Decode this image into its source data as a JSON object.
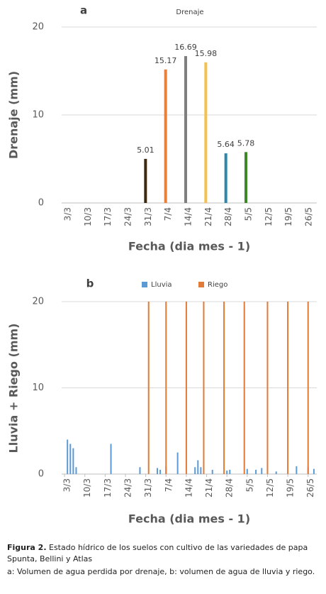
{
  "chart_data": [
    {
      "type": "bar",
      "panel": "a",
      "title": "Drenaje",
      "y_label": "Drenaje (mm)",
      "x_label": "Fecha (dia mes - 1)",
      "categories": [
        "3/3",
        "10/3",
        "17/3",
        "24/3",
        "31/3",
        "7/4",
        "14/4",
        "21/4",
        "28/4",
        "5/5",
        "12/5",
        "19/5",
        "26/5"
      ],
      "values": [
        null,
        null,
        null,
        null,
        5.01,
        15.17,
        16.69,
        15.98,
        5.64,
        5.78,
        null,
        null,
        null
      ],
      "colors": [
        null,
        null,
        null,
        null,
        "#3b2a10",
        "#e8803a",
        "#7f7f7f",
        "#f2c14e",
        "#2e86ab",
        "#3b8a2a",
        null,
        null,
        null
      ],
      "ylim": [
        0,
        20
      ],
      "yticks": [
        0,
        10,
        20
      ],
      "grid": true
    },
    {
      "type": "bar",
      "panel": "b",
      "y_label": "Lluvia + Riego (mm)",
      "x_label": "Fecha (dia mes - 1)",
      "xlim": [
        -1,
        87
      ],
      "xticks": [
        {
          "value": 0,
          "label": "3/3"
        },
        {
          "value": 7,
          "label": "10/3"
        },
        {
          "value": 14,
          "label": "17/3"
        },
        {
          "value": 21,
          "label": "24/3"
        },
        {
          "value": 28,
          "label": "31/3"
        },
        {
          "value": 35,
          "label": "7/4"
        },
        {
          "value": 42,
          "label": "14/4"
        },
        {
          "value": 49,
          "label": "21/4"
        },
        {
          "value": 56,
          "label": "28/4"
        },
        {
          "value": 63,
          "label": "5/5"
        },
        {
          "value": 70,
          "label": "12/5"
        },
        {
          "value": 77,
          "label": "19/5"
        },
        {
          "value": 84,
          "label": "26/5"
        }
      ],
      "ylim": [
        0,
        20
      ],
      "yticks": [
        0,
        10,
        20
      ],
      "grid": true,
      "series": [
        {
          "name": "Lluvia",
          "color": "#5b9bd5",
          "x": [
            1,
            2,
            3,
            4,
            16,
            26,
            32,
            33,
            35,
            39,
            45,
            46,
            47,
            51,
            56,
            57,
            63,
            66,
            68,
            73,
            80,
            84,
            86
          ],
          "values": [
            4.0,
            3.5,
            3.0,
            0.8,
            3.5,
            0.8,
            0.7,
            0.5,
            0.9,
            2.5,
            0.8,
            1.6,
            0.8,
            0.5,
            0.4,
            0.5,
            0.6,
            0.5,
            0.7,
            0.3,
            0.9,
            0.8,
            0.6
          ]
        },
        {
          "name": "Riego",
          "color": "#e07b39",
          "x": [
            29,
            35,
            42,
            48,
            55,
            62,
            70,
            77,
            84
          ],
          "values": [
            20,
            20,
            20,
            20,
            20,
            20,
            20,
            20,
            20
          ]
        }
      ]
    }
  ],
  "caption": {
    "label": "Figura 2.",
    "text": "Estado hídrico de los suelos con cultivo de las variedades de papa Spunta, Bellini y Atlas",
    "note": "a: Volumen de agua perdida por drenaje, b: volumen de agua de lluvia y riego."
  }
}
